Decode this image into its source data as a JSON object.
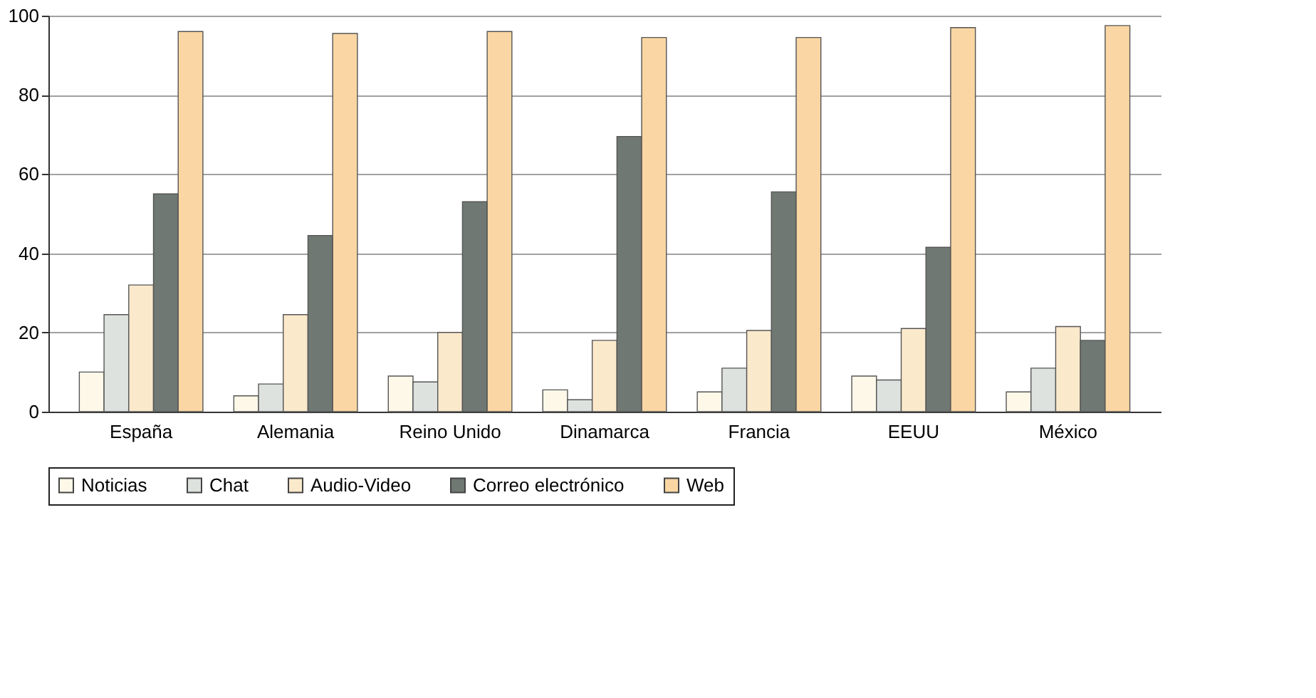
{
  "chart_data": {
    "type": "bar",
    "categories": [
      "España",
      "Alemania",
      "Reino Unido",
      "Dinamarca",
      "Francia",
      "EEUU",
      "México"
    ],
    "series": [
      {
        "name": "Noticias",
        "color": "#fdf8e8",
        "values": [
          10,
          4,
          9,
          5.5,
          5,
          9,
          5
        ]
      },
      {
        "name": "Chat",
        "color": "#dde2df",
        "values": [
          24.5,
          7,
          7.5,
          3,
          11,
          8,
          11
        ]
      },
      {
        "name": "Audio-Video",
        "color": "#fbe9cc",
        "values": [
          32,
          24.5,
          20,
          18,
          20.5,
          21,
          21.5
        ]
      },
      {
        "name": "Correo electrónico",
        "color": "#6f7872",
        "values": [
          55,
          44.5,
          53,
          69.5,
          55.5,
          41.5,
          18
        ]
      },
      {
        "name": "Web",
        "color": "#f9d6a3",
        "values": [
          96,
          95.5,
          96,
          94.5,
          94.5,
          97,
          97.5
        ]
      }
    ],
    "ylim": [
      0,
      100
    ],
    "yticks": [
      0,
      20,
      40,
      60,
      80,
      100
    ],
    "grid": "y",
    "legend": "bottom"
  }
}
